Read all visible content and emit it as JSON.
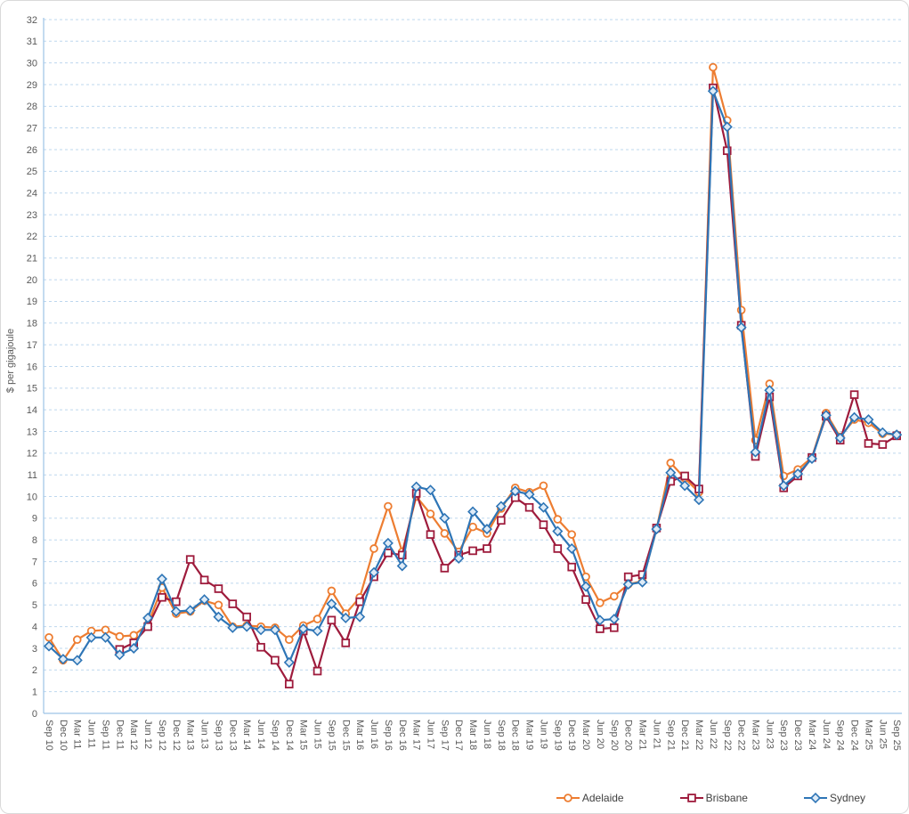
{
  "chart": {
    "y_axis": {
      "title": "$ per gigajoule",
      "min": 0,
      "max": 32,
      "step": 1
    },
    "x_axis": {
      "first": "Sep 10",
      "last": "Sep 25",
      "interval": "quarterly"
    },
    "colors": {
      "adelaide": "#ED7D31",
      "brisbane": "#9E1B3C",
      "sydney": "#2E75B6",
      "gridline": "#BDD7EE",
      "axis_line": "#9DC3E6",
      "tick_text": "#595959",
      "legend_text": "#404040"
    }
  },
  "chart_data": {
    "type": "line",
    "title": "",
    "xlabel": "",
    "ylabel": "$ per gigajoule",
    "ylim": [
      0,
      32
    ],
    "grid": true,
    "legend_position": "bottom-right",
    "categories": [
      "Sep 10",
      "Dec 10",
      "Mar 11",
      "Jun 11",
      "Sep 11",
      "Dec 11",
      "Mar 12",
      "Jun 12",
      "Sep 12",
      "Dec 12",
      "Mar 13",
      "Jun 13",
      "Sep 13",
      "Dec 13",
      "Mar 14",
      "Jun 14",
      "Sep 14",
      "Dec 14",
      "Mar 15",
      "Jun 15",
      "Sep 15",
      "Dec 15",
      "Mar 16",
      "Jun 16",
      "Sep 16",
      "Dec 16",
      "Mar 17",
      "Jun 17",
      "Sep 17",
      "Dec 17",
      "Mar 18",
      "Jun 18",
      "Sep 18",
      "Dec 18",
      "Mar 19",
      "Jun 19",
      "Sep 19",
      "Dec 19",
      "Mar 20",
      "Jun 20",
      "Sep 20",
      "Dec 20",
      "Mar 21",
      "Jun 21",
      "Sep 21",
      "Dec 21",
      "Mar 22",
      "Jun 22",
      "Sep 22",
      "Dec 22",
      "Mar 23",
      "Jun 23",
      "Sep 23",
      "Dec 23",
      "Mar 24",
      "Jun 24",
      "Sep 24",
      "Dec 24",
      "Mar 25",
      "Jun 25",
      "Sep 25"
    ],
    "series": [
      {
        "name": "Adelaide",
        "color": "#ED7D31",
        "marker": "circle",
        "values": [
          3.5,
          2.45,
          3.4,
          3.8,
          3.85,
          3.55,
          3.6,
          4.1,
          5.8,
          4.6,
          4.7,
          5.2,
          5.0,
          4.0,
          4.05,
          4.0,
          3.95,
          3.4,
          4.05,
          4.35,
          5.65,
          4.6,
          5.35,
          7.6,
          9.55,
          7.45,
          10.0,
          9.2,
          8.3,
          7.45,
          8.6,
          8.3,
          9.45,
          10.4,
          10.2,
          10.5,
          8.95,
          8.25,
          6.3,
          5.1,
          5.4,
          5.95,
          6.1,
          8.5,
          11.55,
          10.85,
          10.2,
          29.8,
          27.35,
          18.6,
          12.6,
          15.2,
          10.95,
          11.25,
          11.8,
          13.85,
          12.75,
          13.55,
          13.4,
          12.9,
          12.85
        ]
      },
      {
        "name": "Brisbane",
        "color": "#9E1B3C",
        "marker": "square",
        "values": [
          null,
          null,
          null,
          null,
          null,
          2.95,
          3.25,
          4.0,
          5.35,
          5.15,
          7.1,
          6.15,
          5.75,
          5.05,
          4.45,
          3.05,
          2.45,
          1.35,
          3.8,
          1.95,
          4.3,
          3.25,
          5.15,
          6.3,
          7.4,
          7.3,
          10.15,
          8.25,
          6.7,
          7.3,
          7.5,
          7.6,
          8.9,
          9.95,
          9.5,
          8.7,
          7.6,
          6.75,
          5.25,
          3.9,
          3.95,
          6.3,
          6.4,
          8.55,
          10.7,
          10.95,
          10.35,
          28.85,
          25.95,
          17.9,
          11.85,
          14.6,
          10.4,
          10.95,
          11.8,
          13.7,
          12.6,
          14.7,
          12.45,
          12.4,
          12.8
        ]
      },
      {
        "name": "Sydney",
        "color": "#2E75B6",
        "marker": "diamond",
        "values": [
          3.1,
          2.5,
          2.45,
          3.5,
          3.5,
          2.7,
          3.0,
          4.4,
          6.2,
          4.7,
          4.75,
          5.25,
          4.45,
          3.95,
          4.0,
          3.85,
          3.85,
          2.35,
          3.9,
          3.8,
          5.05,
          4.4,
          4.45,
          6.5,
          7.85,
          6.8,
          10.45,
          10.3,
          9.0,
          7.15,
          9.3,
          8.5,
          9.55,
          10.25,
          10.1,
          9.5,
          8.4,
          7.6,
          5.85,
          4.3,
          4.35,
          5.95,
          6.05,
          8.5,
          11.1,
          10.5,
          9.85,
          28.7,
          27.05,
          17.8,
          12.05,
          14.9,
          10.5,
          11.05,
          11.75,
          13.75,
          12.7,
          13.65,
          13.55,
          12.95,
          12.85
        ]
      }
    ]
  }
}
